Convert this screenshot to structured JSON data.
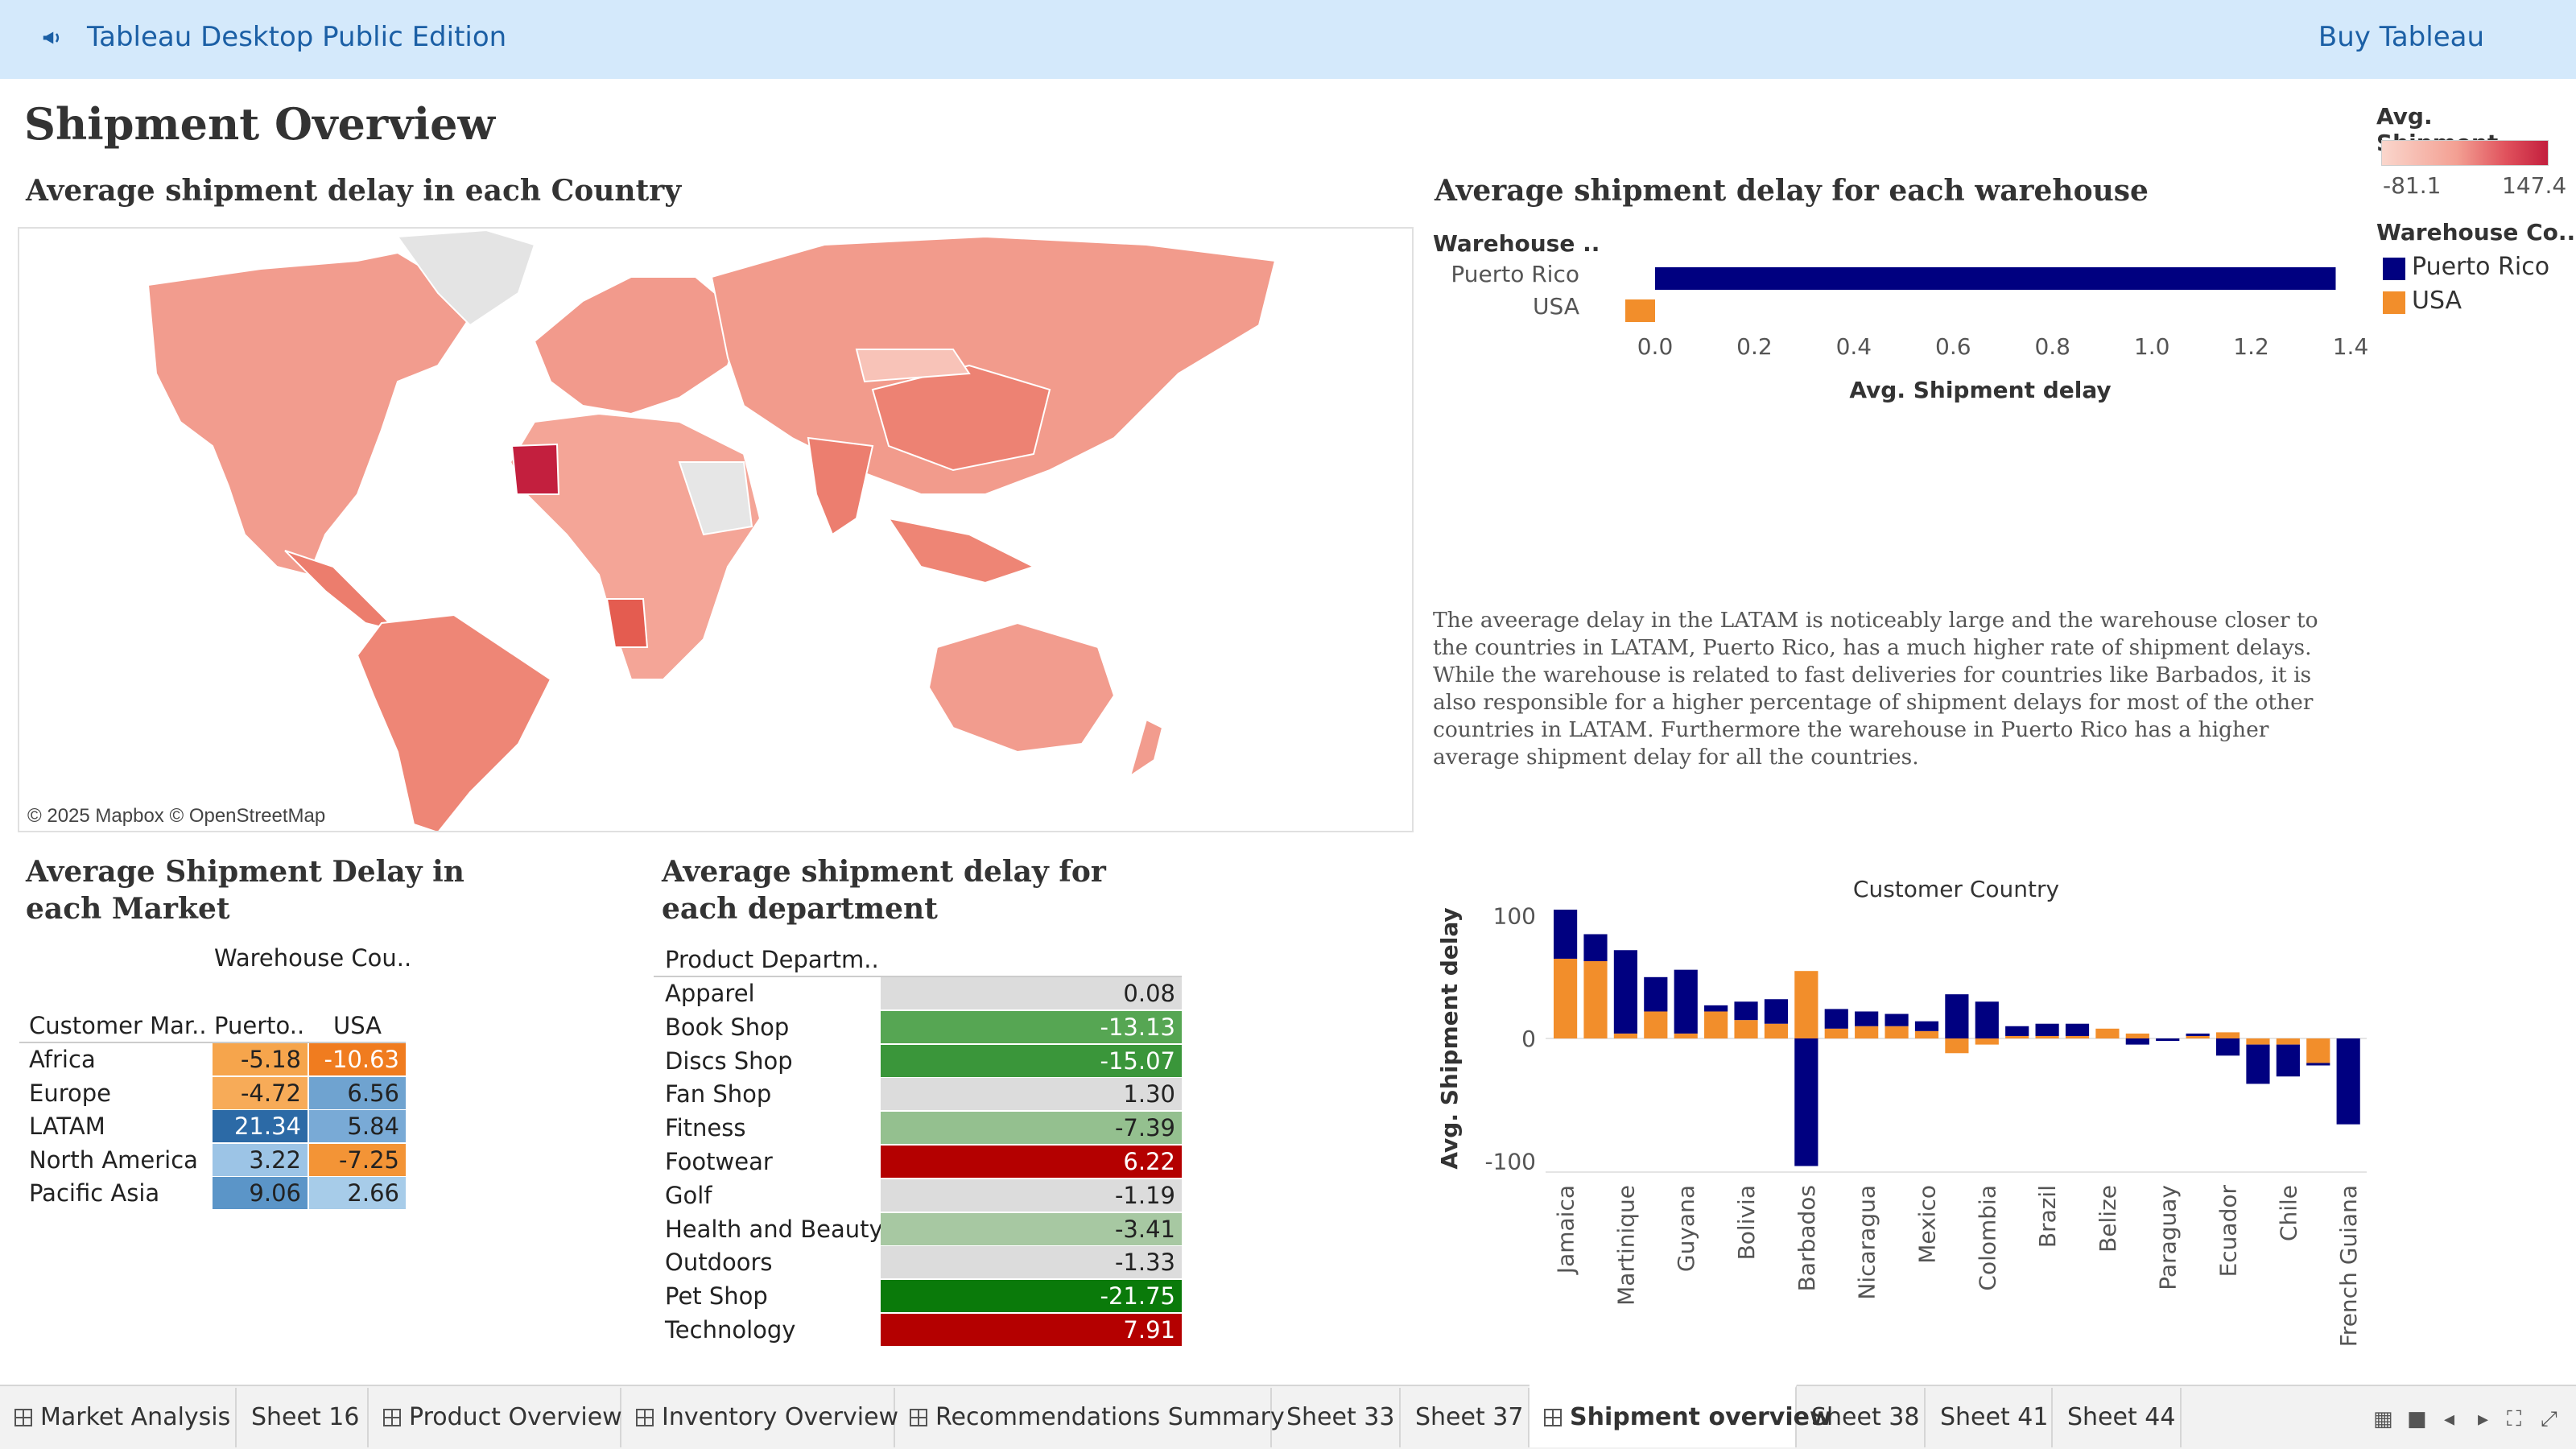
{
  "topbar": {
    "title": "Tableau Desktop Public Edition",
    "buy": "Buy Tableau",
    "icon": "megaphone-icon"
  },
  "dashboard": {
    "title": "Shipment Overview",
    "map_title": "Average shipment delay in each Country",
    "warehouse_title": "Average shipment delay for each warehouse",
    "market_title": "Average Shipment Delay in each Market",
    "department_title": "Average shipment delay for each department",
    "map_credit": "© 2025 Mapbox © OpenStreetMap",
    "note": "The aveerage delay in the LATAM is noticeably large and the warehouse closer to the countries in LATAM, Puerto Rico, has a much higher rate of shipment delays. While the warehouse is related to fast deliveries for countries like Barbados, it is also responsible for a higher percentage of shipment delays for most of the other countries in LATAM. Furthermore the warehouse in Puerto Rico has a higher average shipment delay for all the countries."
  },
  "legend": {
    "avg_title": "Avg. Shipment..",
    "min": "-81.1",
    "max": "147.4",
    "warehouse_title": "Warehouse Co..",
    "items": [
      {
        "label": "Puerto Rico",
        "color": "#000080"
      },
      {
        "label": "USA",
        "color": "#f28e2b"
      }
    ]
  },
  "colors": {
    "puerto_rico": "#000080",
    "usa": "#f28e2b",
    "map_base": "#f3a093"
  },
  "market_table": {
    "corner_label": "Warehouse Cou..",
    "row_header": "Customer Mar..",
    "col_headers": [
      "Puerto..",
      "USA"
    ],
    "rows": [
      {
        "market": "Africa",
        "pr": "-5.18",
        "usa": "-10.63",
        "pr_bg": "#f6a54c",
        "usa_bg": "#f07c1f",
        "pr_fg": "#222",
        "usa_fg": "#fff"
      },
      {
        "market": "Europe",
        "pr": "-4.72",
        "usa": "6.56",
        "pr_bg": "#f7ab58",
        "usa_bg": "#6fa3d0",
        "pr_fg": "#222",
        "usa_fg": "#222"
      },
      {
        "market": "LATAM",
        "pr": "21.34",
        "usa": "5.84",
        "pr_bg": "#2c6aa6",
        "usa_bg": "#79aad6",
        "pr_fg": "#fff",
        "usa_fg": "#222"
      },
      {
        "market": "North America",
        "pr": "3.22",
        "usa": "-7.25",
        "pr_bg": "#9cc4e6",
        "usa_bg": "#f39436",
        "pr_fg": "#222",
        "usa_fg": "#222"
      },
      {
        "market": "Pacific Asia",
        "pr": "9.06",
        "usa": "2.66",
        "pr_bg": "#5b95c8",
        "usa_bg": "#a7cce9",
        "pr_fg": "#222",
        "usa_fg": "#222"
      }
    ]
  },
  "department_table": {
    "header": "Product Departm..",
    "rows": [
      {
        "name": "Apparel",
        "value": "0.08",
        "bg": "#dcdcdc",
        "fg": "#222"
      },
      {
        "name": "Book Shop",
        "value": "-13.13",
        "bg": "#56a653",
        "fg": "#fff"
      },
      {
        "name": "Discs Shop",
        "value": "-15.07",
        "bg": "#3a963a",
        "fg": "#fff"
      },
      {
        "name": "Fan Shop",
        "value": "1.30",
        "bg": "#dcdcdc",
        "fg": "#222"
      },
      {
        "name": "Fitness",
        "value": "-7.39",
        "bg": "#94c08f",
        "fg": "#222"
      },
      {
        "name": "Footwear",
        "value": "6.22",
        "bg": "#b40000",
        "fg": "#fff"
      },
      {
        "name": "Golf",
        "value": "-1.19",
        "bg": "#dcdcdc",
        "fg": "#222"
      },
      {
        "name": "Health and Beauty",
        "value": "-3.41",
        "bg": "#a7c8a2",
        "fg": "#222"
      },
      {
        "name": "Outdoors",
        "value": "-1.33",
        "bg": "#dcdcdc",
        "fg": "#222"
      },
      {
        "name": "Pet Shop",
        "value": "-21.75",
        "bg": "#0a7a0a",
        "fg": "#fff"
      },
      {
        "name": "Technology",
        "value": "7.91",
        "bg": "#b40000",
        "fg": "#fff"
      }
    ]
  },
  "chart_data": [
    {
      "type": "bar",
      "title": "",
      "orientation": "horizontal",
      "row_header": "Warehouse ..",
      "categories": [
        "Puerto Rico",
        "USA"
      ],
      "values": [
        1.37,
        -0.06
      ],
      "colors": [
        "#000080",
        "#f28e2b"
      ],
      "xlabel": "Avg. Shipment delay",
      "xlim": [
        -0.06,
        1.4
      ],
      "xticks": [
        "0.0",
        "0.2",
        "0.4",
        "0.6",
        "0.8",
        "1.0",
        "1.2",
        "1.4"
      ]
    },
    {
      "type": "bar",
      "stacked": true,
      "title": "Customer Country",
      "ylabel": "Avg. Shipment delay",
      "ylim": [
        -105,
        105
      ],
      "yticks": [
        "100",
        "0",
        "-100"
      ],
      "categories": [
        "Jamaica",
        "",
        "Martinique",
        "",
        "Guyana",
        "",
        "Bolivia",
        "",
        "Barbados",
        "",
        "Nicaragua",
        "",
        "Mexico",
        "",
        "Colombia",
        "",
        "Brazil",
        "",
        "Belize",
        "",
        "Paraguay",
        "",
        "Ecuador",
        "",
        "Chile",
        "",
        "French Guiana"
      ],
      "series": [
        {
          "name": "Puerto Rico",
          "values": [
            40,
            22,
            68,
            28,
            52,
            5,
            15,
            20,
            -104,
            16,
            12,
            10,
            8,
            36,
            30,
            8,
            10,
            10,
            0,
            -5,
            -2,
            2,
            -14,
            -32,
            -26,
            -2,
            -70
          ]
        },
        {
          "name": "USA",
          "values": [
            65,
            63,
            4,
            22,
            4,
            22,
            15,
            12,
            55,
            8,
            10,
            10,
            6,
            -12,
            -5,
            2,
            2,
            2,
            8,
            4,
            0,
            2,
            5,
            -5,
            -5,
            -20,
            0
          ]
        }
      ]
    }
  ],
  "tabs": [
    {
      "label": "Market Analysis",
      "grid": true
    },
    {
      "label": "Sheet 16",
      "grid": false
    },
    {
      "label": "Product Overview",
      "grid": true
    },
    {
      "label": "Inventory Overview",
      "grid": true
    },
    {
      "label": "Recommendations Summary",
      "grid": true
    },
    {
      "label": "Sheet 33",
      "grid": false
    },
    {
      "label": "Sheet 37",
      "grid": false
    },
    {
      "label": "Shipment overview",
      "grid": true,
      "active": true
    },
    {
      "label": "Sheet 38",
      "grid": false
    },
    {
      "label": "Sheet 41",
      "grid": false
    },
    {
      "label": "Sheet 44",
      "grid": false
    }
  ]
}
